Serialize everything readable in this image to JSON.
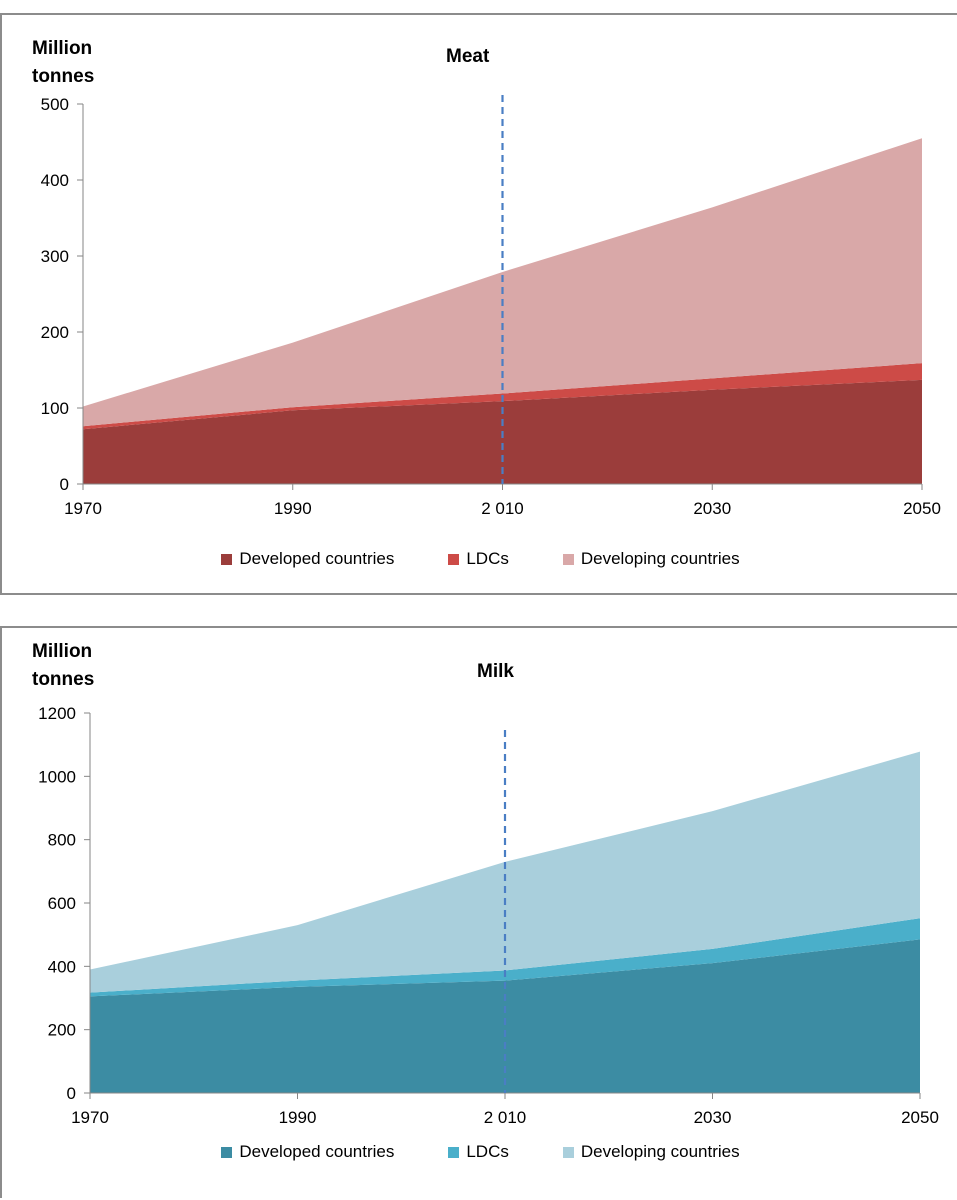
{
  "chart_data": [
    {
      "type": "area",
      "stacked": true,
      "title": "Meat",
      "ylabel": [
        "Million",
        "tonnes"
      ],
      "x": [
        1970,
        1990,
        2010,
        2030,
        2050
      ],
      "x_tick_labels": [
        "1970",
        "1990",
        "2 010",
        "2030",
        "2050"
      ],
      "ylim": [
        0,
        500
      ],
      "y_ticks": [
        0,
        100,
        200,
        300,
        400,
        500
      ],
      "reference_line_x": 2010,
      "series": [
        {
          "name": "Developed countries",
          "color": "#9b3d3b",
          "values": [
            72,
            97,
            109,
            124,
            137
          ]
        },
        {
          "name": "LDCs",
          "color": "#cd4b47",
          "values": [
            4,
            4,
            10,
            15,
            22
          ]
        },
        {
          "name": "Developing countries",
          "color": "#d9a8a8",
          "values": [
            26,
            85,
            160,
            225,
            296
          ]
        }
      ],
      "legend_position": "bottom"
    },
    {
      "type": "area",
      "stacked": true,
      "title": "Milk",
      "ylabel": [
        "Million",
        "tonnes"
      ],
      "x": [
        1970,
        1990,
        2010,
        2030,
        2050
      ],
      "x_tick_labels": [
        "1970",
        "1990",
        "2 010",
        "2030",
        "2050"
      ],
      "ylim": [
        0,
        1200
      ],
      "y_ticks": [
        0,
        200,
        400,
        600,
        800,
        1000,
        1200
      ],
      "reference_line_x": 2010,
      "series": [
        {
          "name": "Developed countries",
          "color": "#3c8ca3",
          "values": [
            305,
            335,
            355,
            410,
            485
          ]
        },
        {
          "name": "LDCs",
          "color": "#4aafca",
          "values": [
            12,
            20,
            32,
            45,
            67
          ]
        },
        {
          "name": "Developing countries",
          "color": "#a9cfdc",
          "values": [
            73,
            175,
            343,
            435,
            526
          ]
        }
      ],
      "legend_position": "bottom"
    }
  ]
}
